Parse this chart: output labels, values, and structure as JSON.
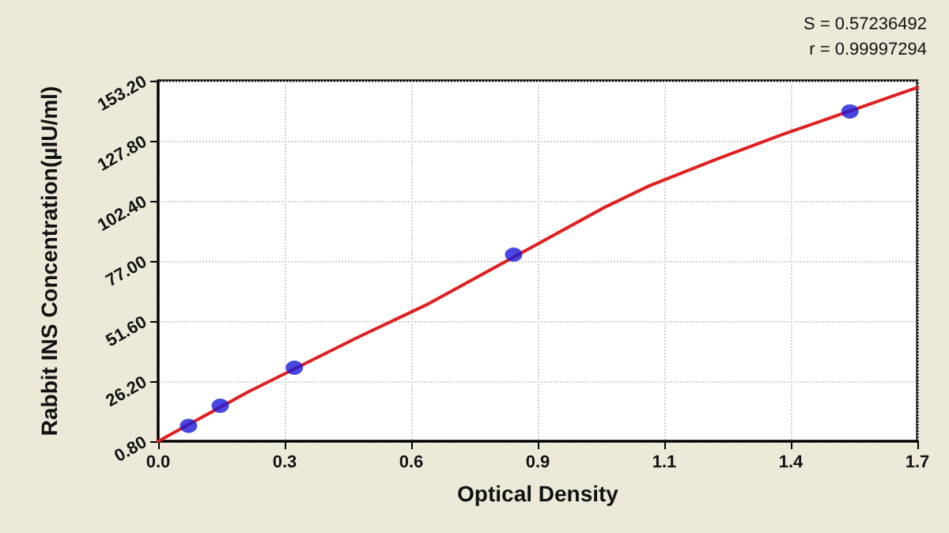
{
  "chart_data": {
    "type": "scatter",
    "xlabel": "Optical Density",
    "ylabel": "Rabbit INS Concentration(µIU/ml)",
    "annotations": [
      "S = 0.57236492",
      "r = 0.99997294"
    ],
    "series": [
      {
        "marker": "circle",
        "color": "#1a1ad8",
        "x": [
          0.068,
          0.139,
          0.305,
          0.796,
          1.549
        ],
        "values": [
          7.3,
          15.8,
          31.9,
          79.7,
          140.2
        ]
      },
      {
        "type": "line",
        "marker": "none",
        "color": "#e02020",
        "x": [
          0,
          0.2,
          0.45,
          0.6,
          1.0,
          1.1,
          1.25,
          1.4,
          1.7
        ],
        "values": [
          0.8,
          21.5,
          45,
          58.4,
          99.7,
          108.8,
          120,
          130.6,
          150.3
        ]
      }
    ],
    "xlim": [
      0,
      1.7
    ],
    "xticks": [
      {
        "value": 0,
        "label": "0.0"
      },
      {
        "value": 0.2833,
        "label": "0.3"
      },
      {
        "value": 0.5667,
        "label": "0.6"
      },
      {
        "value": 0.85,
        "label": "0.9"
      },
      {
        "value": 1.1333,
        "label": "1.1"
      },
      {
        "value": 1.4167,
        "label": "1.4"
      },
      {
        "value": 1.7,
        "label": "1.7"
      }
    ],
    "ylim": [
      0.8,
      153.2
    ],
    "yticks": [
      {
        "value": 0.8,
        "label": "0.80"
      },
      {
        "value": 26.2,
        "label": "26.20"
      },
      {
        "value": 51.6,
        "label": "51.60"
      },
      {
        "value": 77,
        "label": "77.00"
      },
      {
        "value": 102.4,
        "label": "102.40"
      },
      {
        "value": 127.8,
        "label": "127.80"
      },
      {
        "value": 153.2,
        "label": "153.20"
      }
    ],
    "grid": true,
    "line_style": "solid"
  }
}
